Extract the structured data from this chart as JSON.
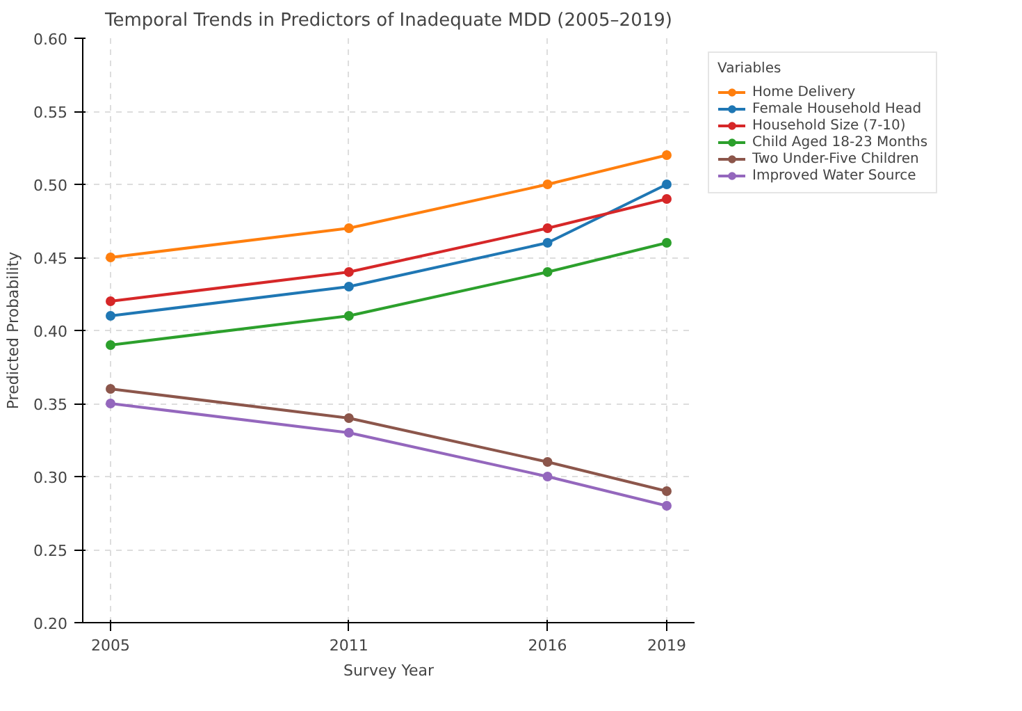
{
  "chart_data": {
    "type": "line",
    "title": "Temporal Trends in Predictors of Inadequate MDD (2005–2019)",
    "xlabel": "Survey Year",
    "ylabel": "Predicted Probability",
    "legend_title": "Variables",
    "x": [
      2005,
      2011,
      2016,
      2019
    ],
    "series": [
      {
        "name": "Home Delivery",
        "color": "#ff7f0e",
        "values": [
          0.45,
          0.47,
          0.5,
          0.52
        ]
      },
      {
        "name": "Female Household Head",
        "color": "#1f77b4",
        "values": [
          0.41,
          0.43,
          0.46,
          0.5
        ]
      },
      {
        "name": "Household Size (7-10)",
        "color": "#d62728",
        "values": [
          0.42,
          0.44,
          0.47,
          0.49
        ]
      },
      {
        "name": "Child Aged 18-23 Months",
        "color": "#2ca02c",
        "values": [
          0.39,
          0.41,
          0.44,
          0.46
        ]
      },
      {
        "name": "Two Under-Five Children",
        "color": "#8c564b",
        "values": [
          0.36,
          0.34,
          0.31,
          0.29
        ]
      },
      {
        "name": "Improved Water Source",
        "color": "#9467bd",
        "values": [
          0.35,
          0.33,
          0.3,
          0.28
        ]
      }
    ],
    "xlim": [
      2004.3,
      2019.7
    ],
    "xticks": [
      2005,
      2011,
      2016,
      2019
    ],
    "ylim": [
      0.2,
      0.6
    ],
    "yticks": [
      {
        "value": 0.2,
        "label": "0.20"
      },
      {
        "value": 0.25,
        "label": "0.25"
      },
      {
        "value": 0.3,
        "label": "0.30"
      },
      {
        "value": 0.35,
        "label": "0.35"
      },
      {
        "value": 0.4,
        "label": "0.40"
      },
      {
        "value": 0.45,
        "label": "0.45"
      },
      {
        "value": 0.5,
        "label": "0.50"
      },
      {
        "value": 0.55,
        "label": "0.55"
      },
      {
        "value": 0.6,
        "label": "0.60"
      }
    ],
    "grid": true,
    "legend": "top right",
    "marker": "circle",
    "line_style": "solid"
  }
}
